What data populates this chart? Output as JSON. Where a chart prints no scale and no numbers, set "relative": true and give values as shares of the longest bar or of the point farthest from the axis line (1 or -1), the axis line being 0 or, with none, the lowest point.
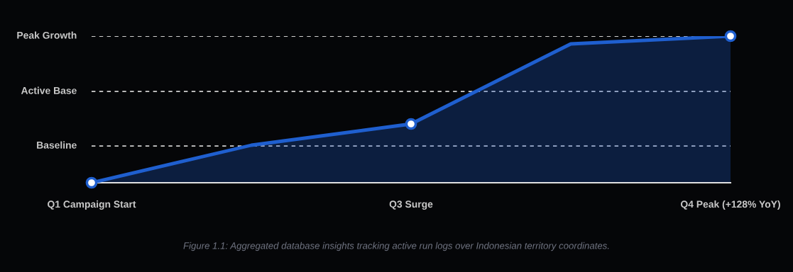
{
  "chart_data": {
    "type": "area",
    "relative": true,
    "categories": [
      "Q1 Campaign Start",
      null,
      "Q3 Surge",
      null,
      "Q4 Peak (+128% YoY)"
    ],
    "series": [
      {
        "color": "#1f5fcf",
        "values": [
          0,
          0.256,
          0.401,
          0.947,
          1
        ]
      },
      {
        "type": "scatter",
        "color": "#1f5fcf",
        "values": [
          0,
          null,
          0.401,
          null,
          1
        ],
        "marker": "circle"
      }
    ],
    "ref_lines": [
      {
        "axis": "y",
        "value": 0.251,
        "label": "Baseline",
        "color": "#cfcfcf",
        "line_style": "dashed"
      },
      {
        "axis": "y",
        "value": 0.623,
        "label": "Active Base",
        "color": "#cfcfcf",
        "line_style": "dashed"
      },
      {
        "axis": "y",
        "value": 1,
        "label": "Peak Growth",
        "color": "#cfcfcf",
        "line_style": "dashed"
      }
    ],
    "grid": false,
    "legend": false,
    "annotations": [
      "Figure 1.1: Aggregated database insights tracking active run logs over Indonesian territory coordinates."
    ]
  }
}
